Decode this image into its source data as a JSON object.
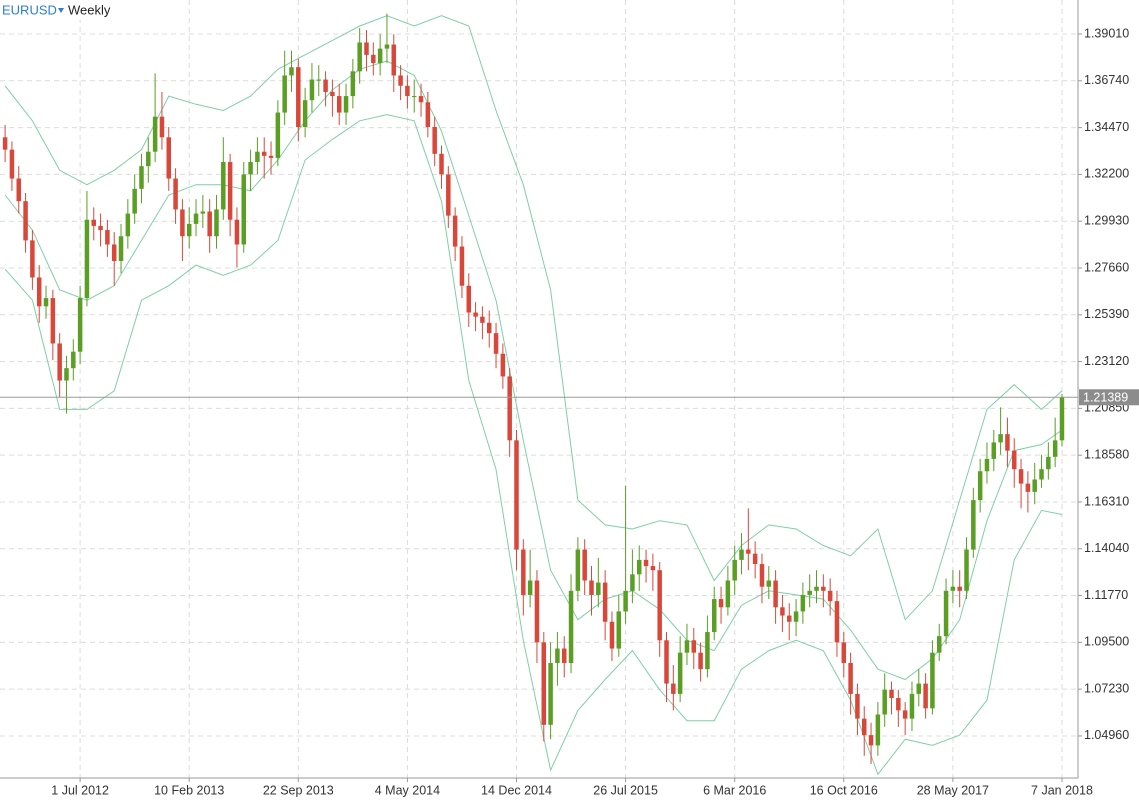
{
  "chart_data": {
    "type": "candlestick",
    "symbol": "EURUSD",
    "timeframe": "Weekly",
    "up_color": "#5a9e23",
    "down_color": "#d9473a",
    "xlim": [
      -23.5,
      292.7
    ],
    "ylim": [
      1.0292,
      1.4066
    ],
    "grid": true,
    "current_price": 1.21389,
    "xticks": [
      {
        "value": 0,
        "label": "1 Jul 2012"
      },
      {
        "value": 32,
        "label": "10 Feb 2013"
      },
      {
        "value": 64,
        "label": "22 Sep 2013"
      },
      {
        "value": 96,
        "label": "4 May 2014"
      },
      {
        "value": 128,
        "label": "14 Dec 2014"
      },
      {
        "value": 160,
        "label": "26 Jul 2015"
      },
      {
        "value": 192,
        "label": "6 Mar 2016"
      },
      {
        "value": 224,
        "label": "16 Oct 2016"
      },
      {
        "value": 256,
        "label": "28 May 2017"
      },
      {
        "value": 288,
        "label": "7 Jan 2018"
      }
    ],
    "yticks": [
      {
        "value": 1.3901,
        "label": "1.39010"
      },
      {
        "value": 1.3674,
        "label": "1.36740"
      },
      {
        "value": 1.3447,
        "label": "1.34470"
      },
      {
        "value": 1.322,
        "label": "1.32200"
      },
      {
        "value": 1.2993,
        "label": "1.29930"
      },
      {
        "value": 1.2766,
        "label": "1.27660"
      },
      {
        "value": 1.2539,
        "label": "1.25390"
      },
      {
        "value": 1.2312,
        "label": "1.23120"
      },
      {
        "value": 1.2085,
        "label": "1.20850"
      },
      {
        "value": 1.1858,
        "label": "1.18580"
      },
      {
        "value": 1.1631,
        "label": "1.16310"
      },
      {
        "value": 1.1404,
        "label": "1.14040"
      },
      {
        "value": 1.1177,
        "label": "1.11770"
      },
      {
        "value": 1.095,
        "label": "1.09500"
      },
      {
        "value": 1.0723,
        "label": "1.07230"
      },
      {
        "value": 1.0496,
        "label": "1.04960"
      }
    ],
    "x": [
      -22,
      -20,
      -18,
      -16,
      -14,
      -12,
      -10,
      -8,
      -6,
      -4,
      -2,
      0,
      2,
      4,
      6,
      8,
      10,
      12,
      14,
      16,
      18,
      20,
      22,
      24,
      26,
      28,
      30,
      32,
      34,
      36,
      38,
      40,
      42,
      44,
      46,
      48,
      50,
      52,
      54,
      56,
      58,
      60,
      62,
      64,
      66,
      68,
      70,
      72,
      74,
      76,
      78,
      80,
      82,
      84,
      86,
      88,
      90,
      92,
      94,
      96,
      98,
      100,
      102,
      104,
      106,
      108,
      110,
      112,
      114,
      116,
      118,
      120,
      122,
      124,
      126,
      128,
      130,
      132,
      134,
      136,
      138,
      140,
      142,
      144,
      146,
      148,
      150,
      152,
      154,
      156,
      158,
      160,
      162,
      164,
      166,
      168,
      170,
      172,
      174,
      176,
      178,
      180,
      182,
      184,
      186,
      188,
      190,
      192,
      194,
      196,
      198,
      200,
      202,
      204,
      206,
      208,
      210,
      212,
      214,
      216,
      218,
      220,
      222,
      224,
      226,
      228,
      230,
      232,
      234,
      236,
      238,
      240,
      242,
      244,
      246,
      248,
      250,
      252,
      254,
      256,
      258,
      260,
      262,
      264,
      266,
      268,
      270,
      272,
      274,
      276,
      278,
      280,
      282,
      284,
      286,
      288
    ],
    "open": [
      1.34,
      1.334,
      1.32,
      1.309,
      1.29,
      1.272,
      1.258,
      1.262,
      1.24,
      1.222,
      1.228,
      1.236,
      1.262,
      1.3,
      1.297,
      1.295,
      1.288,
      1.28,
      1.292,
      1.303,
      1.315,
      1.326,
      1.333,
      1.35,
      1.34,
      1.32,
      1.305,
      1.292,
      1.298,
      1.303,
      1.304,
      1.292,
      1.305,
      1.328,
      1.3,
      1.288,
      1.322,
      1.328,
      1.333,
      1.331,
      1.33,
      1.352,
      1.37,
      1.374,
      1.345,
      1.358,
      1.368,
      1.368,
      1.362,
      1.36,
      1.352,
      1.36,
      1.372,
      1.386,
      1.38,
      1.376,
      1.383,
      1.385,
      1.37,
      1.365,
      1.36,
      1.36,
      1.357,
      1.345,
      1.332,
      1.322,
      1.302,
      1.287,
      1.268,
      1.255,
      1.253,
      1.25,
      1.245,
      1.235,
      1.224,
      1.193,
      1.14,
      1.118,
      1.125,
      1.095,
      1.055,
      1.085,
      1.092,
      1.085,
      1.12,
      1.14,
      1.125,
      1.118,
      1.124,
      1.105,
      1.092,
      1.11,
      1.12,
      1.128,
      1.135,
      1.132,
      1.13,
      1.096,
      1.075,
      1.07,
      1.09,
      1.096,
      1.09,
      1.082,
      1.1,
      1.116,
      1.112,
      1.125,
      1.135,
      1.14,
      1.138,
      1.133,
      1.122,
      1.125,
      1.112,
      1.108,
      1.105,
      1.11,
      1.118,
      1.12,
      1.122,
      1.12,
      1.115,
      1.095,
      1.085,
      1.07,
      1.058,
      1.05,
      1.045,
      1.06,
      1.072,
      1.068,
      1.062,
      1.058,
      1.07,
      1.075,
      1.063,
      1.09,
      1.098,
      1.12,
      1.122,
      1.12,
      1.14,
      1.164,
      1.178,
      1.184,
      1.192,
      1.196,
      1.188,
      1.179,
      1.172,
      1.168,
      1.174,
      1.179,
      1.185,
      1.193
    ],
    "high": [
      1.346,
      1.338,
      1.326,
      1.313,
      1.295,
      1.278,
      1.268,
      1.266,
      1.245,
      1.234,
      1.242,
      1.268,
      1.314,
      1.306,
      1.303,
      1.3,
      1.294,
      1.298,
      1.31,
      1.322,
      1.332,
      1.34,
      1.371,
      1.362,
      1.345,
      1.325,
      1.31,
      1.306,
      1.31,
      1.312,
      1.31,
      1.312,
      1.34,
      1.332,
      1.306,
      1.328,
      1.334,
      1.34,
      1.34,
      1.338,
      1.358,
      1.382,
      1.382,
      1.378,
      1.364,
      1.376,
      1.375,
      1.372,
      1.368,
      1.366,
      1.366,
      1.378,
      1.393,
      1.392,
      1.386,
      1.39,
      1.4,
      1.39,
      1.375,
      1.37,
      1.368,
      1.366,
      1.362,
      1.35,
      1.336,
      1.326,
      1.306,
      1.292,
      1.274,
      1.26,
      1.258,
      1.256,
      1.25,
      1.24,
      1.228,
      1.198,
      1.145,
      1.14,
      1.13,
      1.1,
      1.095,
      1.1,
      1.098,
      1.128,
      1.146,
      1.145,
      1.132,
      1.136,
      1.13,
      1.11,
      1.118,
      1.171,
      1.14,
      1.142,
      1.14,
      1.138,
      1.134,
      1.1,
      1.084,
      1.098,
      1.104,
      1.102,
      1.095,
      1.108,
      1.122,
      1.122,
      1.132,
      1.142,
      1.148,
      1.16,
      1.144,
      1.138,
      1.132,
      1.13,
      1.118,
      1.114,
      1.116,
      1.124,
      1.128,
      1.13,
      1.128,
      1.126,
      1.12,
      1.1,
      1.09,
      1.075,
      1.064,
      1.056,
      1.066,
      1.08,
      1.076,
      1.072,
      1.066,
      1.076,
      1.082,
      1.08,
      1.096,
      1.104,
      1.126,
      1.13,
      1.13,
      1.146,
      1.17,
      1.184,
      1.192,
      1.198,
      1.209,
      1.204,
      1.194,
      1.184,
      1.178,
      1.182,
      1.186,
      1.192,
      1.204,
      1.2155
    ],
    "low": [
      1.328,
      1.314,
      1.303,
      1.284,
      1.266,
      1.25,
      1.252,
      1.232,
      1.214,
      1.206,
      1.222,
      1.23,
      1.258,
      1.29,
      1.287,
      1.282,
      1.268,
      1.274,
      1.286,
      1.298,
      1.308,
      1.318,
      1.328,
      1.334,
      1.314,
      1.298,
      1.28,
      1.286,
      1.292,
      1.296,
      1.284,
      1.286,
      1.3,
      1.292,
      1.277,
      1.284,
      1.314,
      1.322,
      1.32,
      1.322,
      1.326,
      1.346,
      1.362,
      1.338,
      1.34,
      1.352,
      1.36,
      1.355,
      1.35,
      1.346,
      1.346,
      1.354,
      1.366,
      1.372,
      1.37,
      1.37,
      1.376,
      1.362,
      1.358,
      1.354,
      1.352,
      1.35,
      1.34,
      1.326,
      1.315,
      1.296,
      1.28,
      1.262,
      1.248,
      1.246,
      1.242,
      1.238,
      1.228,
      1.218,
      1.185,
      1.13,
      1.108,
      1.112,
      1.085,
      1.047,
      1.048,
      1.074,
      1.078,
      1.08,
      1.115,
      1.118,
      1.108,
      1.112,
      1.096,
      1.086,
      1.088,
      1.104,
      1.114,
      1.12,
      1.124,
      1.12,
      1.088,
      1.066,
      1.062,
      1.066,
      1.084,
      1.082,
      1.076,
      1.078,
      1.096,
      1.104,
      1.108,
      1.118,
      1.128,
      1.13,
      1.126,
      1.114,
      1.116,
      1.104,
      1.1,
      1.096,
      1.098,
      1.104,
      1.112,
      1.114,
      1.112,
      1.108,
      1.088,
      1.078,
      1.06,
      1.05,
      1.04,
      1.036,
      1.04,
      1.054,
      1.06,
      1.054,
      1.05,
      1.052,
      1.064,
      1.058,
      1.06,
      1.086,
      1.094,
      1.114,
      1.112,
      1.116,
      1.136,
      1.158,
      1.172,
      1.178,
      1.186,
      1.18,
      1.17,
      1.16,
      1.158,
      1.162,
      1.17,
      1.174,
      1.18,
      1.19
    ],
    "close": [
      1.334,
      1.32,
      1.309,
      1.29,
      1.272,
      1.258,
      1.262,
      1.24,
      1.222,
      1.228,
      1.236,
      1.262,
      1.3,
      1.297,
      1.295,
      1.288,
      1.28,
      1.292,
      1.303,
      1.315,
      1.326,
      1.333,
      1.35,
      1.34,
      1.32,
      1.305,
      1.292,
      1.298,
      1.303,
      1.304,
      1.292,
      1.305,
      1.328,
      1.3,
      1.288,
      1.322,
      1.328,
      1.333,
      1.331,
      1.33,
      1.352,
      1.37,
      1.374,
      1.345,
      1.358,
      1.368,
      1.368,
      1.362,
      1.36,
      1.352,
      1.36,
      1.372,
      1.386,
      1.38,
      1.376,
      1.383,
      1.385,
      1.37,
      1.365,
      1.36,
      1.36,
      1.357,
      1.345,
      1.332,
      1.322,
      1.302,
      1.287,
      1.268,
      1.255,
      1.253,
      1.25,
      1.245,
      1.235,
      1.224,
      1.193,
      1.14,
      1.118,
      1.125,
      1.095,
      1.055,
      1.085,
      1.092,
      1.085,
      1.12,
      1.14,
      1.125,
      1.118,
      1.124,
      1.105,
      1.092,
      1.11,
      1.12,
      1.128,
      1.135,
      1.132,
      1.13,
      1.096,
      1.075,
      1.07,
      1.09,
      1.096,
      1.09,
      1.082,
      1.1,
      1.116,
      1.112,
      1.125,
      1.135,
      1.14,
      1.138,
      1.133,
      1.122,
      1.125,
      1.112,
      1.108,
      1.105,
      1.11,
      1.118,
      1.12,
      1.122,
      1.12,
      1.115,
      1.095,
      1.085,
      1.07,
      1.058,
      1.05,
      1.045,
      1.06,
      1.072,
      1.068,
      1.062,
      1.058,
      1.07,
      1.075,
      1.063,
      1.09,
      1.098,
      1.12,
      1.122,
      1.12,
      1.14,
      1.164,
      1.178,
      1.184,
      1.192,
      1.196,
      1.188,
      1.179,
      1.172,
      1.168,
      1.174,
      1.179,
      1.185,
      1.193,
      1.21389
    ],
    "bollinger": {
      "color": "#7fcfa5",
      "x": [
        -22,
        -14,
        -6,
        2,
        10,
        18,
        26,
        34,
        42,
        50,
        58,
        66,
        74,
        82,
        90,
        98,
        106,
        114,
        122,
        130,
        138,
        146,
        154,
        162,
        170,
        178,
        186,
        194,
        202,
        210,
        218,
        226,
        234,
        242,
        250,
        258,
        266,
        274,
        282,
        288
      ],
      "upper": [
        1.365,
        1.348,
        1.324,
        1.317,
        1.324,
        1.334,
        1.36,
        1.356,
        1.353,
        1.36,
        1.373,
        1.38,
        1.387,
        1.394,
        1.399,
        1.394,
        1.399,
        1.394,
        1.353,
        1.317,
        1.266,
        1.164,
        1.152,
        1.15,
        1.154,
        1.152,
        1.125,
        1.142,
        1.152,
        1.15,
        1.142,
        1.137,
        1.15,
        1.106,
        1.12,
        1.164,
        1.208,
        1.22,
        1.208,
        1.217
      ],
      "middle": [
        1.312,
        1.295,
        1.266,
        1.261,
        1.268,
        1.29,
        1.312,
        1.317,
        1.317,
        1.314,
        1.329,
        1.348,
        1.363,
        1.373,
        1.377,
        1.37,
        1.343,
        1.302,
        1.261,
        1.193,
        1.13,
        1.106,
        1.116,
        1.12,
        1.111,
        1.096,
        1.091,
        1.113,
        1.12,
        1.118,
        1.116,
        1.101,
        1.082,
        1.077,
        1.087,
        1.106,
        1.154,
        1.188,
        1.191,
        1.198
      ],
      "lower": [
        1.276,
        1.261,
        1.208,
        1.208,
        1.217,
        1.261,
        1.268,
        1.278,
        1.273,
        1.278,
        1.29,
        1.329,
        1.339,
        1.348,
        1.351,
        1.348,
        1.309,
        1.222,
        1.179,
        1.096,
        1.033,
        1.062,
        1.077,
        1.091,
        1.072,
        1.057,
        1.057,
        1.082,
        1.091,
        1.096,
        1.091,
        1.067,
        1.031,
        1.048,
        1.045,
        1.05,
        1.067,
        1.135,
        1.159,
        1.157
      ]
    }
  }
}
